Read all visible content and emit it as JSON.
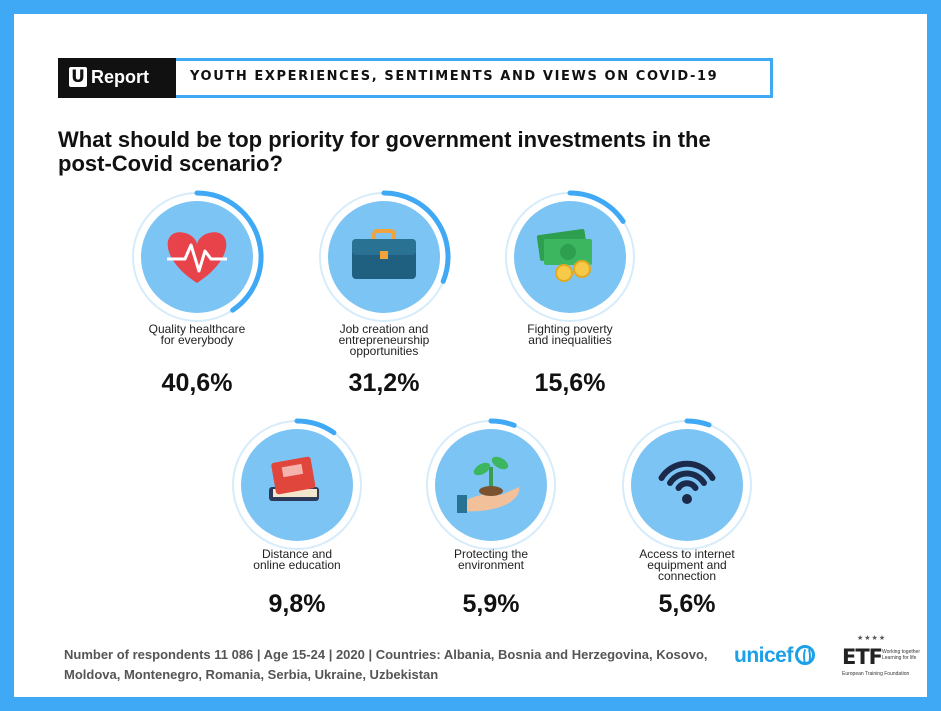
{
  "banner": {
    "logo_letter": "U",
    "logo_text": "Report",
    "title": "YOUTH EXPERIENCES, SENTIMENTS AND VIEWS ON COVID-19"
  },
  "question": "What should be top priority for government investments in the post-Covid scenario?",
  "chart_data": {
    "type": "bar",
    "title": "What should be top priority for government investments in the post-Covid scenario?",
    "categories": [
      "Quality healthcare for everybody",
      "Job creation and entrepreneurship opportunities",
      "Fighting poverty and inequalities",
      "Distance and online education",
      "Protecting the environment",
      "Access to internet equipment and connection"
    ],
    "label_lines": [
      [
        "Quality healthcare",
        "for everybody"
      ],
      [
        "Job creation and",
        "entrepreneurship",
        "opportunities"
      ],
      [
        "Fighting poverty",
        "and inequalities"
      ],
      [
        "Distance and",
        "online education"
      ],
      [
        "Protecting the",
        "environment"
      ],
      [
        "Access to internet",
        "equipment and",
        "connection"
      ]
    ],
    "values": [
      40.6,
      31.2,
      15.6,
      9.8,
      5.9,
      5.6
    ],
    "value_labels": [
      "40,6%",
      "31,2%",
      "15,6%",
      "9,8%",
      "5,9%",
      "5,6%"
    ],
    "icons": [
      "heart-pulse-icon",
      "briefcase-icon",
      "money-coins-icon",
      "books-icon",
      "plant-hand-icon",
      "wifi-icon"
    ],
    "unit": "%"
  },
  "colors": {
    "accent_blue": "#3fa9f5",
    "circle_fill": "#7cc4f4",
    "ring_track": "#d6ecfb",
    "text_dark": "#111111"
  },
  "footer": {
    "text": "Number of respondents 11 086 | Age 15-24 | 2020 | Countries: Albania, Bosnia and Herzegovina, Kosovo, Moldova, Montenegro, Romania, Serbia, Ukraine, Uzbekistan"
  },
  "partners": {
    "unicef": "unicef",
    "etf": "ETF",
    "etf_tagline": "Working together Learning for life",
    "etf_full": "European Training Foundation"
  }
}
